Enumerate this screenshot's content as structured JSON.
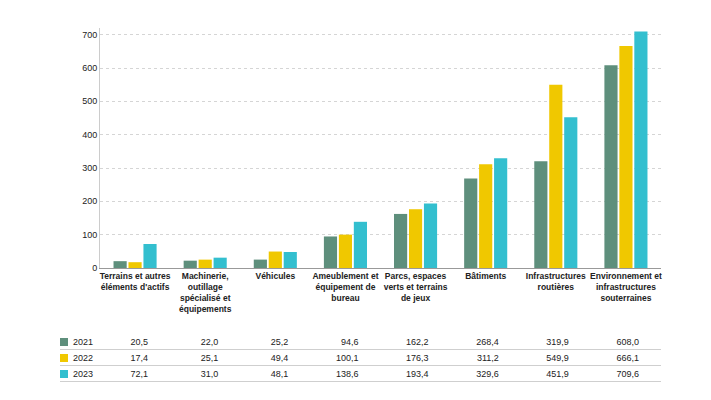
{
  "chart_data": {
    "type": "bar",
    "categories": [
      "Terrains et autres éléments d'actifs",
      "Machinerie, outillage spécialisé et équipements",
      "Véhicules",
      "Ameublement et équipement de bureau",
      "Parcs, espaces verts et terrains de jeux",
      "Bâtiments",
      "Infrastructures routières",
      "Environnement et infrastructures souterraines"
    ],
    "series": [
      {
        "name": "2021",
        "color": "#5e8f7c",
        "values": [
          20.5,
          22.0,
          25.2,
          94.6,
          162.2,
          268.4,
          319.9,
          608.0
        ],
        "value_labels": [
          "20,5",
          "22,0",
          "25,2",
          "94,6",
          "162,2",
          "268,4",
          "319,9",
          "608,0"
        ]
      },
      {
        "name": "2022",
        "color": "#f0c800",
        "values": [
          17.4,
          25.1,
          49.4,
          100.1,
          176.3,
          311.2,
          549.9,
          666.1
        ],
        "value_labels": [
          "17,4",
          "25,1",
          "49,4",
          "100,1",
          "176,3",
          "311,2",
          "549,9",
          "666,1"
        ]
      },
      {
        "name": "2023",
        "color": "#33bfcf",
        "values": [
          72.1,
          31.0,
          48.1,
          138.6,
          193.4,
          329.6,
          451.9,
          709.6
        ],
        "value_labels": [
          "72,1",
          "31,0",
          "48,1",
          "138,6",
          "193,4",
          "329,6",
          "451,9",
          "709,6"
        ]
      }
    ],
    "ylim": [
      0,
      720
    ],
    "yticks": [
      0,
      100,
      200,
      300,
      400,
      500,
      600,
      700
    ],
    "grid": true
  }
}
